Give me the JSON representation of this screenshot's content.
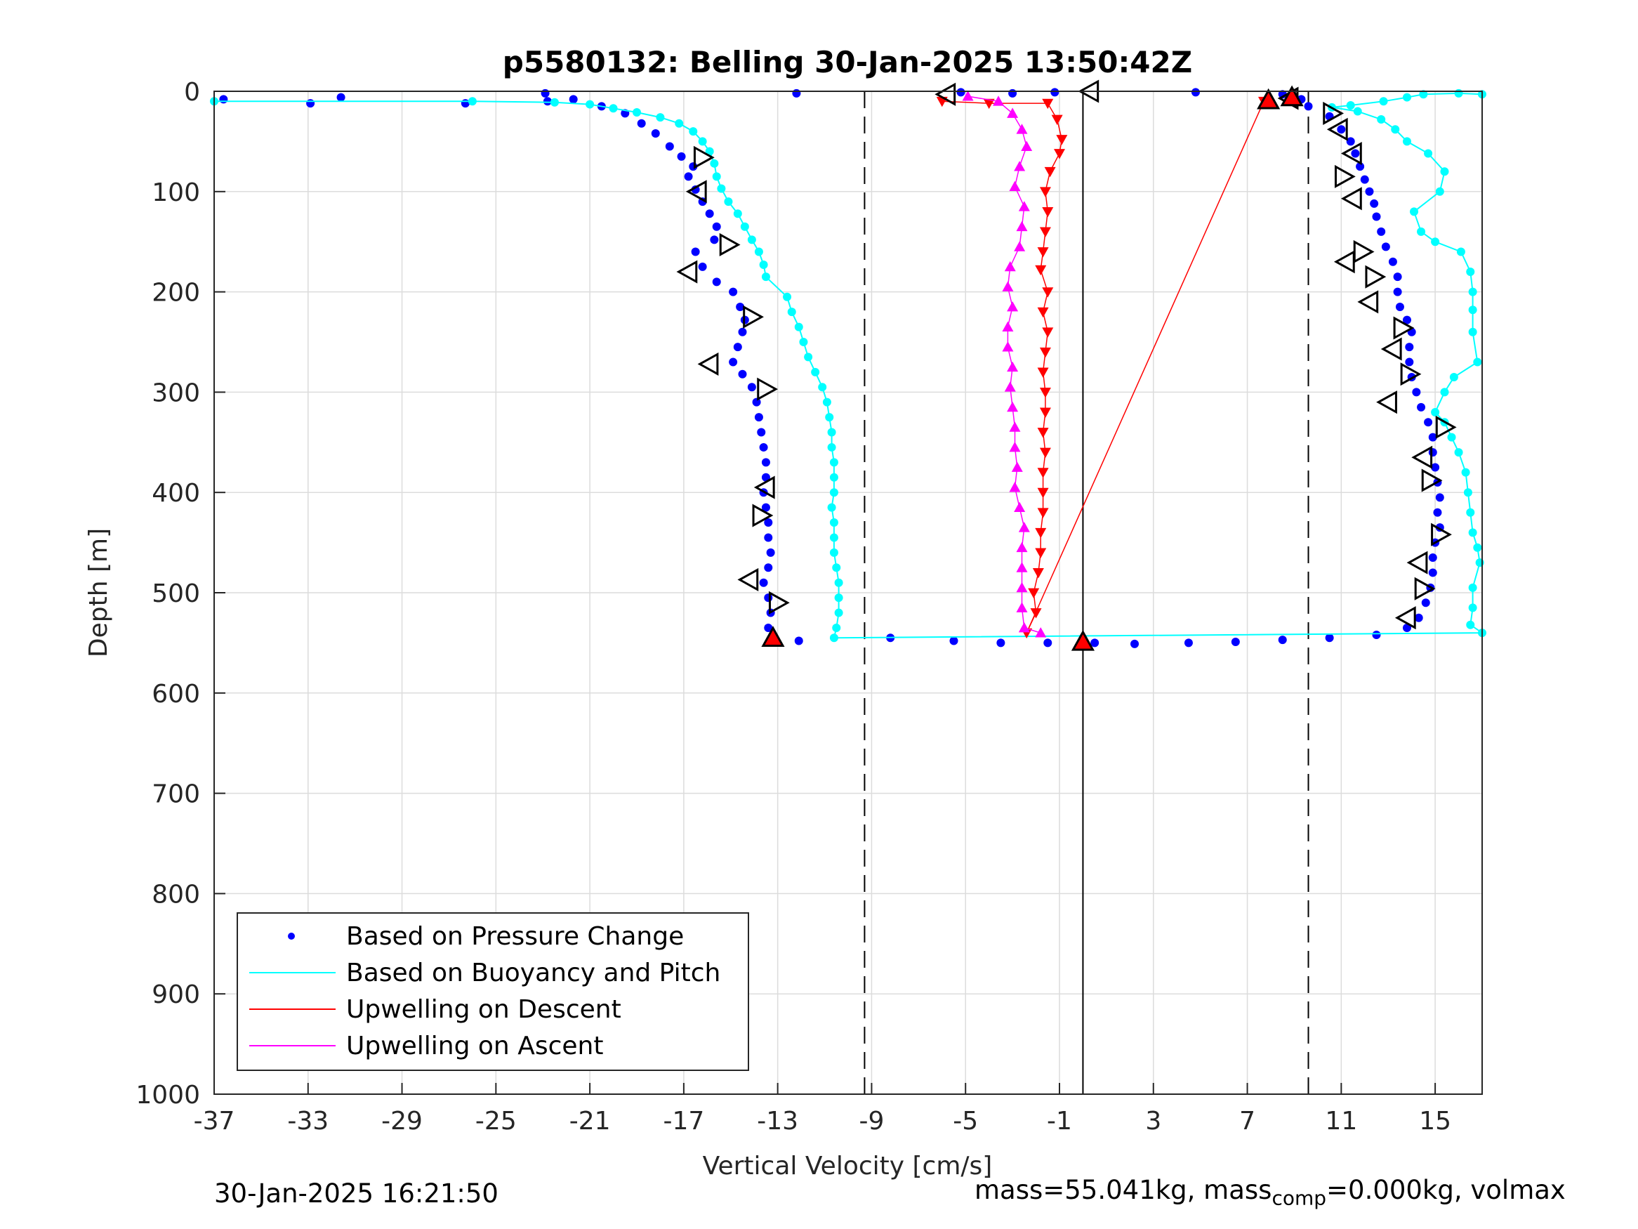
{
  "chart_data": {
    "type": "scatter",
    "title": "p5580132: Belling 30-Jan-2025 13:50:42Z",
    "xlabel": "Vertical Velocity [cm/s]",
    "ylabel": "Depth [m]",
    "xlim": [
      -37,
      17
    ],
    "ylim": [
      0,
      1000
    ],
    "y_reversed": true,
    "x_ticks": [
      -37,
      -33,
      -29,
      -25,
      -21,
      -17,
      -13,
      -9,
      -5,
      -1,
      3,
      7,
      11,
      15
    ],
    "y_ticks": [
      0,
      100,
      200,
      300,
      400,
      500,
      600,
      700,
      800,
      900,
      1000
    ],
    "grid": true,
    "legend_position": "bottom-left",
    "legend": [
      {
        "label": "Based on Pressure Change",
        "style": "dot",
        "color": "#0000ff"
      },
      {
        "label": "Based on Buoyancy and Pitch",
        "style": "line",
        "color": "#00ffff"
      },
      {
        "label": "Upwelling on Descent",
        "style": "line",
        "color": "#ff0000"
      },
      {
        "label": "Upwelling on Ascent",
        "style": "line",
        "color": "#ff00ff"
      }
    ],
    "reference_lines": [
      {
        "x": -9.3,
        "style": "dashed",
        "color": "#000000"
      },
      {
        "x": 0,
        "style": "solid",
        "color": "#000000"
      },
      {
        "x": 9.6,
        "style": "dashed",
        "color": "#000000"
      }
    ],
    "series": [
      {
        "name": "Based on Pressure Change",
        "kind": "dots",
        "color": "#0000ff",
        "points": [
          [
            -36.6,
            8
          ],
          [
            -32.9,
            12
          ],
          [
            -31.6,
            6
          ],
          [
            -26.3,
            12
          ],
          [
            -22.9,
            2
          ],
          [
            -22.8,
            10
          ],
          [
            -21.7,
            8
          ],
          [
            -20.5,
            15
          ],
          [
            -19.5,
            22
          ],
          [
            -18.8,
            32
          ],
          [
            -18.2,
            42
          ],
          [
            -17.6,
            55
          ],
          [
            -17.1,
            65
          ],
          [
            -16.6,
            75
          ],
          [
            -16.8,
            85
          ],
          [
            -16.5,
            98
          ],
          [
            -16.2,
            110
          ],
          [
            -15.9,
            122
          ],
          [
            -15.6,
            135
          ],
          [
            -15.7,
            148
          ],
          [
            -16.5,
            160
          ],
          [
            -16.2,
            175
          ],
          [
            -15.6,
            190
          ],
          [
            -14.9,
            200
          ],
          [
            -14.6,
            215
          ],
          [
            -14.4,
            228
          ],
          [
            -14.5,
            240
          ],
          [
            -14.7,
            255
          ],
          [
            -14.9,
            270
          ],
          [
            -14.5,
            282
          ],
          [
            -14.1,
            295
          ],
          [
            -13.9,
            310
          ],
          [
            -13.8,
            325
          ],
          [
            -13.7,
            340
          ],
          [
            -13.6,
            355
          ],
          [
            -13.5,
            370
          ],
          [
            -13.5,
            385
          ],
          [
            -13.6,
            400
          ],
          [
            -13.5,
            415
          ],
          [
            -13.4,
            430
          ],
          [
            -13.4,
            445
          ],
          [
            -13.3,
            460
          ],
          [
            -13.4,
            475
          ],
          [
            -13.6,
            490
          ],
          [
            -13.4,
            505
          ],
          [
            -13.3,
            520
          ],
          [
            -13.4,
            535
          ],
          [
            -13.2,
            545
          ],
          [
            -12.1,
            548
          ],
          [
            -8.2,
            545
          ],
          [
            -5.5,
            548
          ],
          [
            -3.5,
            550
          ],
          [
            -1.5,
            550
          ],
          [
            0.5,
            550
          ],
          [
            2.2,
            551
          ],
          [
            4.5,
            550
          ],
          [
            6.5,
            549
          ],
          [
            8.5,
            547
          ],
          [
            10.5,
            545
          ],
          [
            12.5,
            542
          ],
          [
            13.8,
            535
          ],
          [
            14.3,
            525
          ],
          [
            14.6,
            510
          ],
          [
            14.8,
            495
          ],
          [
            14.9,
            480
          ],
          [
            14.9,
            465
          ],
          [
            15.0,
            450
          ],
          [
            15.2,
            435
          ],
          [
            15.1,
            420
          ],
          [
            15.2,
            405
          ],
          [
            15.1,
            390
          ],
          [
            15.0,
            375
          ],
          [
            14.9,
            360
          ],
          [
            14.9,
            345
          ],
          [
            14.7,
            330
          ],
          [
            14.4,
            315
          ],
          [
            14.2,
            300
          ],
          [
            14.0,
            285
          ],
          [
            13.9,
            270
          ],
          [
            13.9,
            255
          ],
          [
            14.0,
            240
          ],
          [
            13.8,
            228
          ],
          [
            13.5,
            215
          ],
          [
            13.4,
            200
          ],
          [
            13.4,
            185
          ],
          [
            13.2,
            170
          ],
          [
            12.9,
            155
          ],
          [
            12.7,
            140
          ],
          [
            12.5,
            125
          ],
          [
            12.4,
            112
          ],
          [
            12.2,
            100
          ],
          [
            12.0,
            88
          ],
          [
            11.8,
            75
          ],
          [
            11.6,
            62
          ],
          [
            11.4,
            50
          ],
          [
            11.0,
            38
          ],
          [
            10.5,
            25
          ],
          [
            9.6,
            15
          ],
          [
            9.3,
            8
          ],
          [
            8.5,
            3
          ],
          [
            4.8,
            1
          ],
          [
            -12.2,
            2
          ],
          [
            -5.2,
            1
          ],
          [
            -3.0,
            2
          ],
          [
            -1.2,
            1
          ]
        ]
      },
      {
        "name": "Based on Buoyancy and Pitch",
        "kind": "dots+line",
        "color": "#00ffff",
        "points": [
          [
            -37,
            10
          ],
          [
            -26.0,
            10
          ],
          [
            -22.5,
            11
          ],
          [
            -21.0,
            13
          ],
          [
            -20.0,
            17
          ],
          [
            -19.0,
            21
          ],
          [
            -18.0,
            26
          ],
          [
            -17.2,
            32
          ],
          [
            -16.6,
            40
          ],
          [
            -16.2,
            50
          ],
          [
            -15.9,
            60
          ],
          [
            -15.7,
            72
          ],
          [
            -15.6,
            85
          ],
          [
            -15.4,
            97
          ],
          [
            -15.1,
            110
          ],
          [
            -14.7,
            122
          ],
          [
            -14.4,
            135
          ],
          [
            -14.1,
            148
          ],
          [
            -13.8,
            160
          ],
          [
            -13.6,
            173
          ],
          [
            -13.5,
            185
          ],
          [
            -12.6,
            205
          ],
          [
            -12.4,
            220
          ],
          [
            -12.1,
            235
          ],
          [
            -11.9,
            250
          ],
          [
            -11.7,
            265
          ],
          [
            -11.4,
            280
          ],
          [
            -11.1,
            295
          ],
          [
            -10.9,
            310
          ],
          [
            -10.8,
            325
          ],
          [
            -10.7,
            340
          ],
          [
            -10.7,
            355
          ],
          [
            -10.6,
            370
          ],
          [
            -10.6,
            385
          ],
          [
            -10.6,
            400
          ],
          [
            -10.7,
            415
          ],
          [
            -10.6,
            430
          ],
          [
            -10.6,
            445
          ],
          [
            -10.6,
            460
          ],
          [
            -10.5,
            475
          ],
          [
            -10.4,
            490
          ],
          [
            -10.4,
            505
          ],
          [
            -10.4,
            520
          ],
          [
            -10.5,
            535
          ],
          [
            -10.6,
            545
          ],
          [
            17,
            540
          ],
          [
            16.5,
            532
          ],
          [
            16.6,
            515
          ],
          [
            16.6,
            495
          ],
          [
            16.9,
            470
          ],
          [
            16.8,
            455
          ],
          [
            16.6,
            440
          ],
          [
            16.5,
            420
          ],
          [
            16.4,
            400
          ],
          [
            16.3,
            380
          ],
          [
            16.0,
            360
          ],
          [
            15.7,
            345
          ],
          [
            15.4,
            330
          ],
          [
            15.0,
            320
          ],
          [
            15.4,
            300
          ],
          [
            15.8,
            285
          ],
          [
            16.8,
            270
          ],
          [
            16.6,
            240
          ],
          [
            16.6,
            218
          ],
          [
            16.6,
            200
          ],
          [
            16.5,
            180
          ],
          [
            16.1,
            160
          ],
          [
            15.0,
            150
          ],
          [
            14.4,
            140
          ],
          [
            14.1,
            120
          ],
          [
            15.2,
            100
          ],
          [
            15.4,
            80
          ],
          [
            14.7,
            62
          ],
          [
            13.8,
            50
          ],
          [
            13.3,
            38
          ],
          [
            12.7,
            28
          ],
          [
            11.7,
            20
          ],
          [
            10.6,
            16
          ],
          [
            11.4,
            14
          ],
          [
            12.8,
            10
          ],
          [
            13.8,
            6
          ],
          [
            14.5,
            3
          ],
          [
            16.0,
            2
          ],
          [
            17,
            3
          ]
        ]
      },
      {
        "name": "Upwelling on Descent",
        "kind": "triangles-down",
        "color": "#ff0000",
        "points": [
          [
            -6.0,
            10
          ],
          [
            -4.0,
            12
          ],
          [
            -1.5,
            12
          ],
          [
            -1.1,
            28
          ],
          [
            -0.9,
            48
          ],
          [
            -1.0,
            62
          ],
          [
            -1.4,
            80
          ],
          [
            -1.6,
            100
          ],
          [
            -1.5,
            120
          ],
          [
            -1.6,
            140
          ],
          [
            -1.7,
            160
          ],
          [
            -1.8,
            178
          ],
          [
            -1.5,
            200
          ],
          [
            -1.7,
            220
          ],
          [
            -1.5,
            240
          ],
          [
            -1.6,
            260
          ],
          [
            -1.7,
            280
          ],
          [
            -1.6,
            300
          ],
          [
            -1.6,
            320
          ],
          [
            -1.7,
            340
          ],
          [
            -1.6,
            360
          ],
          [
            -1.7,
            380
          ],
          [
            -1.7,
            400
          ],
          [
            -1.7,
            420
          ],
          [
            -1.8,
            440
          ],
          [
            -1.8,
            460
          ],
          [
            -1.9,
            480
          ],
          [
            -2.1,
            500
          ],
          [
            -2.0,
            520
          ],
          [
            -2.4,
            540
          ],
          [
            7.7,
            10
          ]
        ]
      },
      {
        "name": "Upwelling on Ascent",
        "kind": "triangles-up",
        "color": "#ff00ff",
        "points": [
          [
            -4.9,
            5
          ],
          [
            -3.6,
            10
          ],
          [
            -3.0,
            22
          ],
          [
            -2.6,
            38
          ],
          [
            -2.4,
            55
          ],
          [
            -2.7,
            75
          ],
          [
            -2.9,
            95
          ],
          [
            -2.5,
            115
          ],
          [
            -2.6,
            135
          ],
          [
            -2.7,
            155
          ],
          [
            -3.1,
            175
          ],
          [
            -3.2,
            195
          ],
          [
            -3.0,
            215
          ],
          [
            -3.2,
            235
          ],
          [
            -3.2,
            255
          ],
          [
            -3.0,
            275
          ],
          [
            -3.1,
            295
          ],
          [
            -3.0,
            315
          ],
          [
            -2.9,
            335
          ],
          [
            -2.9,
            355
          ],
          [
            -2.8,
            375
          ],
          [
            -2.9,
            395
          ],
          [
            -2.7,
            415
          ],
          [
            -2.5,
            435
          ],
          [
            -2.6,
            455
          ],
          [
            -2.6,
            475
          ],
          [
            -2.6,
            495
          ],
          [
            -2.6,
            515
          ],
          [
            -2.5,
            535
          ],
          [
            -1.8,
            540
          ]
        ]
      },
      {
        "name": "turn-points-right",
        "kind": "open-triangles-right",
        "color": "#000000",
        "points": [
          [
            -16.2,
            66
          ],
          [
            -15.1,
            153
          ],
          [
            -14.1,
            225
          ],
          [
            -13.5,
            297
          ],
          [
            -13.7,
            423
          ],
          [
            -13.0,
            510
          ],
          [
            10.6,
            22
          ],
          [
            11.9,
            160
          ],
          [
            12.4,
            185
          ],
          [
            13.6,
            236
          ],
          [
            13.9,
            282
          ],
          [
            15.4,
            335
          ],
          [
            15.2,
            442
          ],
          [
            14.5,
            496
          ],
          [
            11.1,
            85
          ],
          [
            14.8,
            388
          ]
        ]
      },
      {
        "name": "turn-points-left",
        "kind": "open-triangles-left",
        "color": "#000000",
        "points": [
          [
            -5.8,
            3
          ],
          [
            0.3,
            0
          ],
          [
            -16.4,
            100
          ],
          [
            -16.8,
            180
          ],
          [
            -15.9,
            272
          ],
          [
            -13.5,
            395
          ],
          [
            -14.2,
            487
          ],
          [
            8.8,
            7
          ],
          [
            10.9,
            38
          ],
          [
            11.5,
            107
          ],
          [
            11.2,
            170
          ],
          [
            12.2,
            210
          ],
          [
            13.2,
            257
          ],
          [
            13.0,
            310
          ],
          [
            14.5,
            365
          ],
          [
            14.3,
            470
          ],
          [
            13.8,
            525
          ],
          [
            11.5,
            62
          ]
        ]
      },
      {
        "name": "end-markers",
        "kind": "filled-triangles",
        "color": "#ff0000",
        "points": [
          [
            -13.2,
            545
          ],
          [
            0,
            549
          ],
          [
            7.9,
            9
          ],
          [
            8.9,
            6
          ]
        ]
      }
    ]
  },
  "footer": {
    "timestamp": "30-Jan-2025 16:21:50",
    "mass_text": "mass=55.041kg, mass",
    "mass_sub": "comp",
    "mass_rest": "=0.000kg, volmax"
  }
}
